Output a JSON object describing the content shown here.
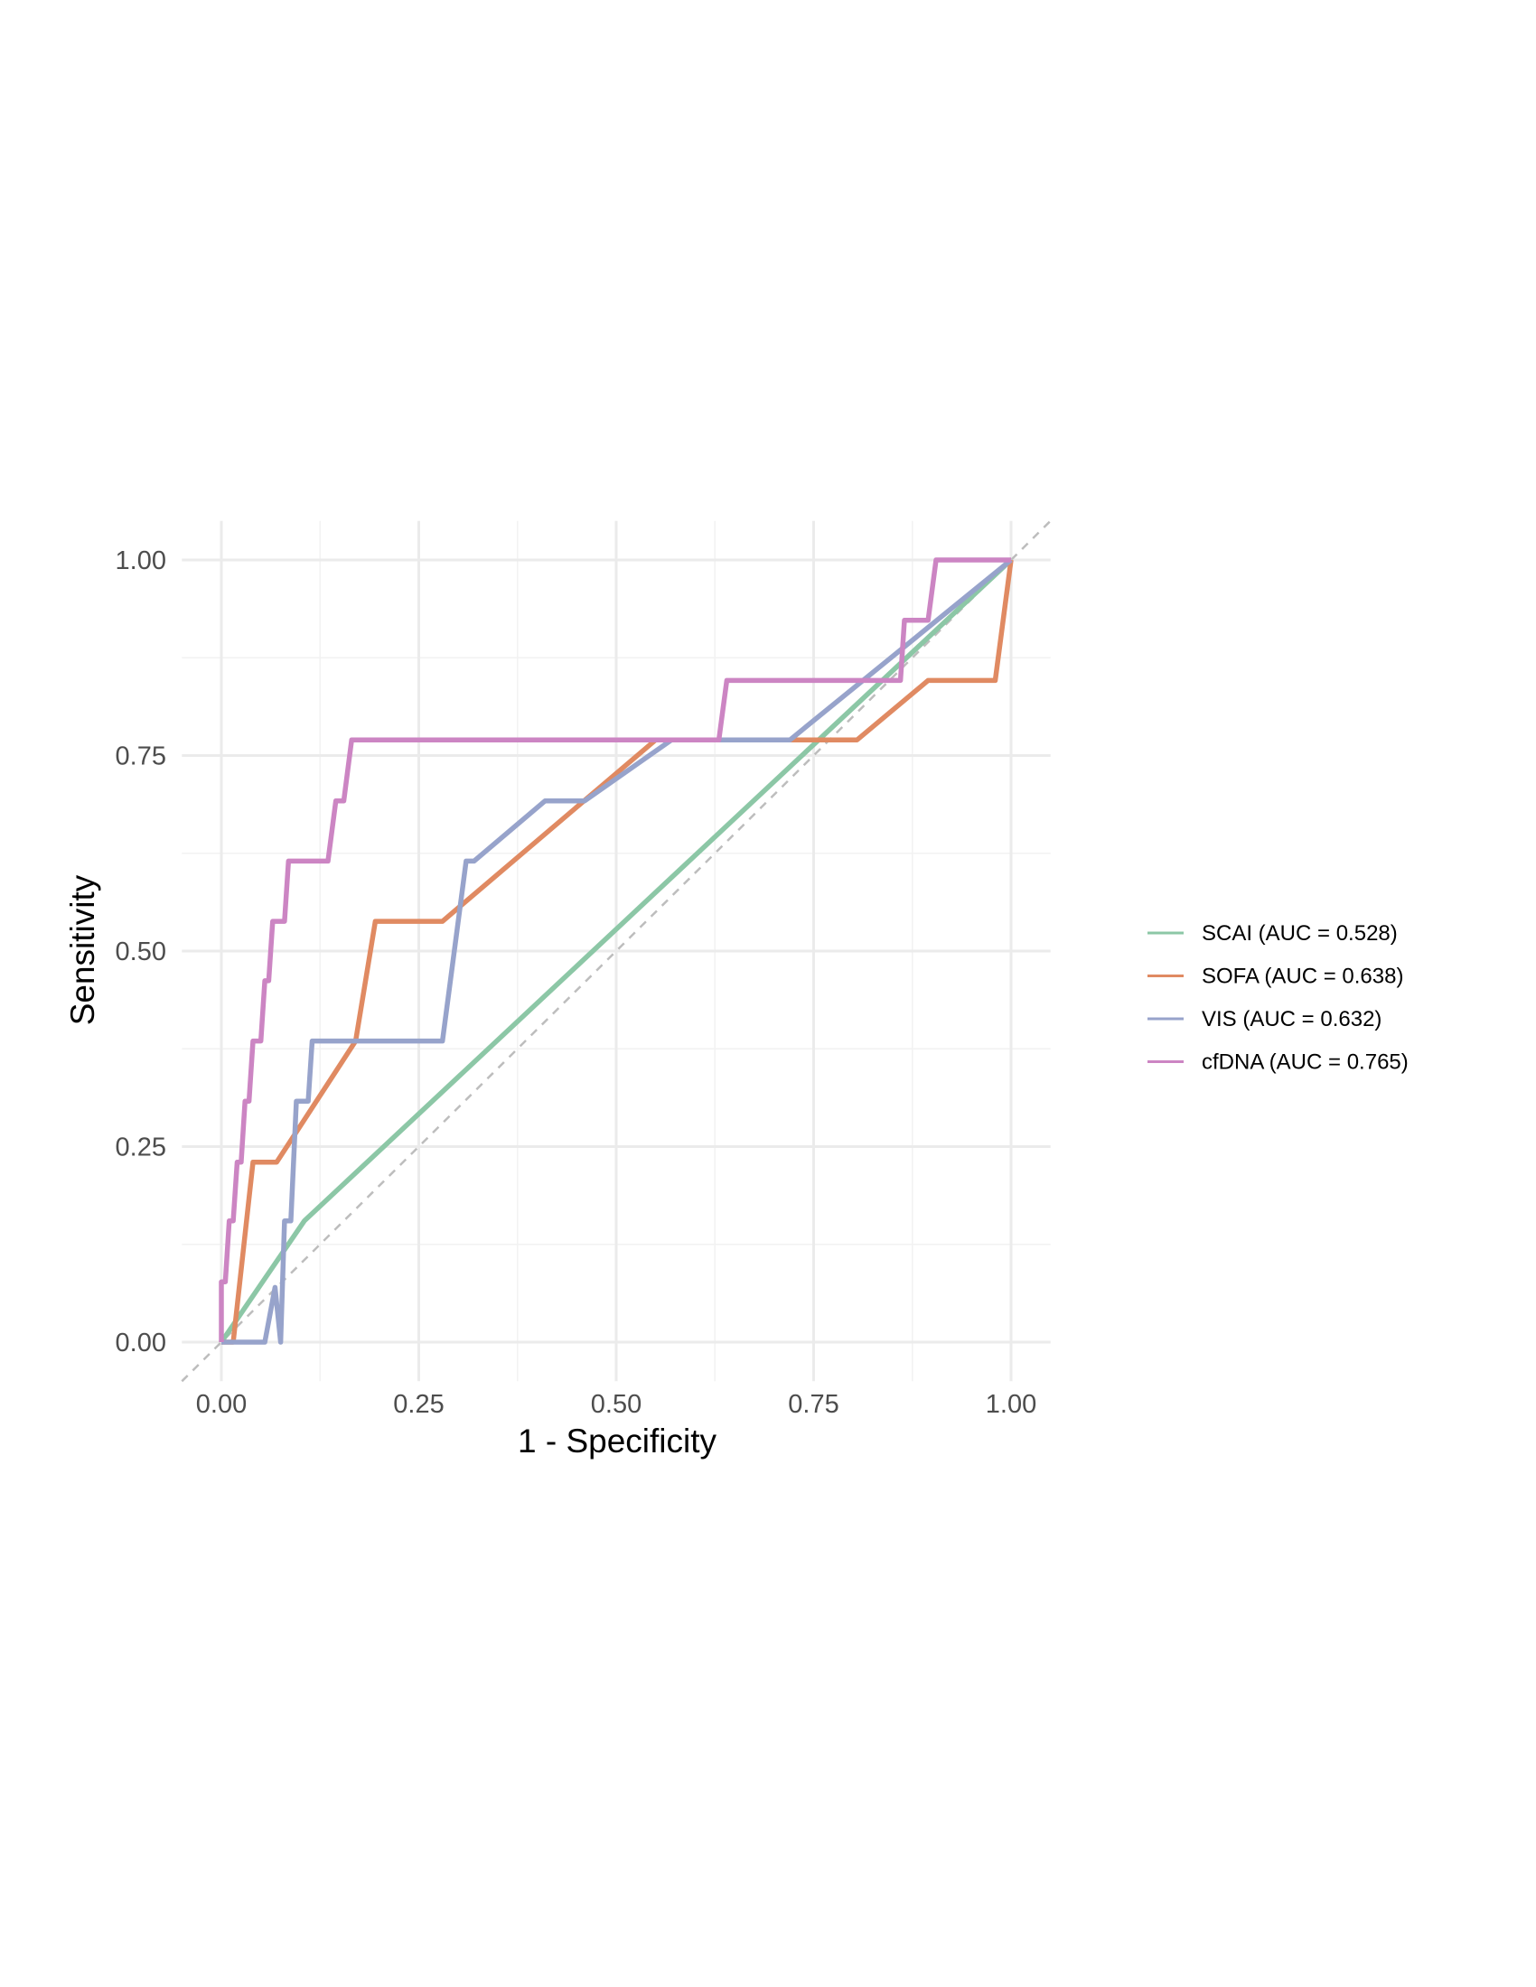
{
  "chart_data": {
    "type": "line",
    "title": "",
    "xlabel": "1 - Specificity",
    "ylabel": "Sensitivity",
    "xlim": [
      -0.05,
      1.05
    ],
    "ylim": [
      -0.05,
      1.05
    ],
    "x_ticks": [
      0.0,
      0.25,
      0.5,
      0.75,
      1.0
    ],
    "x_tick_labels": [
      "0.00",
      "0.25",
      "0.50",
      "0.75",
      "1.00"
    ],
    "y_ticks": [
      0.0,
      0.25,
      0.5,
      0.75,
      1.0
    ],
    "y_tick_labels": [
      "0.00",
      "0.25",
      "0.50",
      "0.75",
      "1.00"
    ],
    "grid": true,
    "legend_position": "right",
    "reference_line": {
      "x": [
        -0.05,
        1.05
      ],
      "y": [
        -0.05,
        1.05
      ],
      "style": "dashed",
      "color": "#bdbdbd"
    },
    "series": [
      {
        "name": "SCAI (AUC = 0.528)",
        "color": "#8cc7a6",
        "x": [
          0.0,
          0.105,
          1.0
        ],
        "y": [
          0.0,
          0.155,
          1.0
        ]
      },
      {
        "name": "SOFA (AUC = 0.638)",
        "color": "#e08a62",
        "x": [
          0.0,
          0.015,
          0.04,
          0.07,
          0.17,
          0.195,
          0.28,
          0.55,
          0.805,
          0.895,
          0.98,
          1.0
        ],
        "y": [
          0.0,
          0.0,
          0.23,
          0.23,
          0.385,
          0.538,
          0.538,
          0.77,
          0.77,
          0.846,
          0.846,
          1.0
        ]
      },
      {
        "name": "VIS (AUC = 0.632)",
        "color": "#97a3cb",
        "x": [
          0.0,
          0.055,
          0.068,
          0.075,
          0.08,
          0.088,
          0.095,
          0.1,
          0.11,
          0.115,
          0.12,
          0.13,
          0.28,
          0.31,
          0.32,
          0.41,
          0.46,
          0.57,
          0.72,
          1.0
        ],
        "y": [
          0.0,
          0.0,
          0.07,
          0.0,
          0.155,
          0.155,
          0.308,
          0.308,
          0.308,
          0.385,
          0.385,
          0.385,
          0.385,
          0.615,
          0.615,
          0.692,
          0.692,
          0.77,
          0.77,
          1.0
        ]
      },
      {
        "name": "cfDNA (AUC = 0.765)",
        "color": "#cc85c3",
        "x": [
          0.0,
          0.0,
          0.005,
          0.01,
          0.015,
          0.02,
          0.025,
          0.03,
          0.035,
          0.04,
          0.045,
          0.05,
          0.055,
          0.06,
          0.065,
          0.07,
          0.075,
          0.08,
          0.085,
          0.095,
          0.105,
          0.115,
          0.135,
          0.145,
          0.155,
          0.165,
          0.175,
          0.63,
          0.64,
          0.85,
          0.86,
          0.865,
          0.875,
          0.895,
          0.905,
          0.915,
          1.0
        ],
        "y": [
          0.0,
          0.077,
          0.077,
          0.155,
          0.155,
          0.23,
          0.23,
          0.308,
          0.308,
          0.385,
          0.385,
          0.385,
          0.462,
          0.462,
          0.538,
          0.538,
          0.538,
          0.538,
          0.615,
          0.615,
          0.615,
          0.615,
          0.615,
          0.692,
          0.692,
          0.77,
          0.77,
          0.77,
          0.846,
          0.846,
          0.846,
          0.923,
          0.923,
          0.923,
          1.0,
          1.0,
          1.0
        ]
      }
    ]
  }
}
